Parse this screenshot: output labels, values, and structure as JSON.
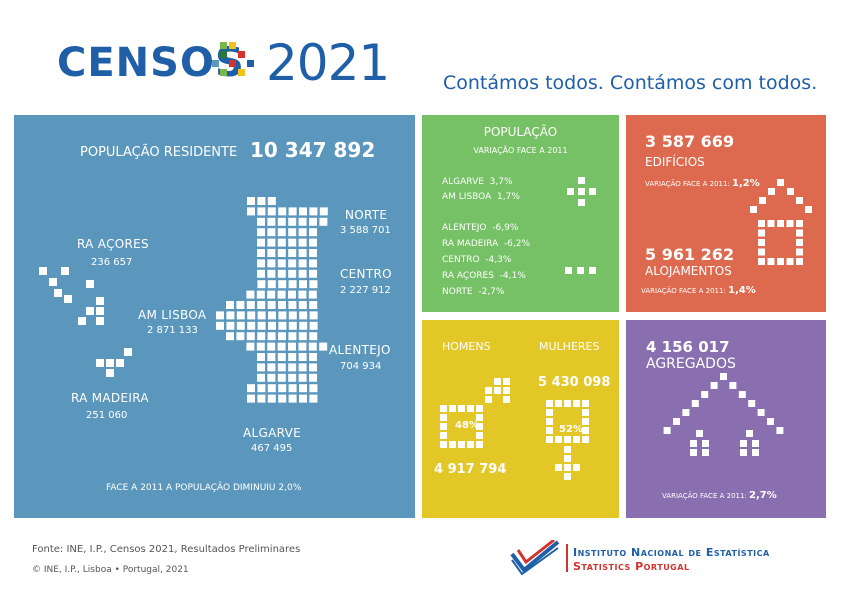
{
  "header": {
    "logo_word": "CENSOS",
    "logo_year": "2021",
    "tagline": "Contámos todos. Contámos com todos."
  },
  "colors": {
    "blue_panel": "#5b97bd",
    "green_panel": "#76c165",
    "red_panel": "#dd6a4f",
    "yellow_panel": "#e3c727",
    "purple_panel": "#8a6fb0",
    "brand_blue": "#1f5fa8",
    "ine_red": "#d1342f"
  },
  "map_panel": {
    "population_label": "POPULAÇÃO RESIDENTE",
    "population_value": "10 347 892",
    "regions": [
      {
        "name": "NORTE",
        "value": "3 588 701"
      },
      {
        "name": "CENTRO",
        "value": "2 227 912"
      },
      {
        "name": "AM LISBOA",
        "value": "2 871 133"
      },
      {
        "name": "ALENTEJO",
        "value": "704 934"
      },
      {
        "name": "ALGARVE",
        "value": "467 495"
      },
      {
        "name": "RA AÇORES",
        "value": "236 657"
      },
      {
        "name": "RA MADEIRA",
        "value": "251 060"
      }
    ],
    "footnote": "FACE A 2011 A POPULAÇÃO DIMINUIU 2,0%"
  },
  "variation_panel": {
    "title": "POPULAÇÃO",
    "subtitle": "VARIAÇÃO FACE A 2011",
    "positive": [
      {
        "name": "ALGARVE",
        "value": "3,7%"
      },
      {
        "name": "AM LISBOA",
        "value": "1,7%"
      }
    ],
    "negative": [
      {
        "name": "ALENTEJO",
        "value": "-6,9%"
      },
      {
        "name": "RA MADEIRA",
        "value": "-6,2%"
      },
      {
        "name": "CENTRO",
        "value": "-4,3%"
      },
      {
        "name": "RA AÇORES",
        "value": "-4,1%"
      },
      {
        "name": "NORTE",
        "value": "-2,7%"
      }
    ]
  },
  "buildings_panel": {
    "buildings_value": "3 587 669",
    "buildings_label": "EDIFÍCIOS",
    "buildings_var_label": "VARIAÇÃO FACE A 2011:",
    "buildings_var_value": "1,2%",
    "dwellings_value": "5 961 262",
    "dwellings_label": "ALOJAMENTOS",
    "dwellings_var_label": "VARIAÇÃO FACE A 2011:",
    "dwellings_var_value": "1,4%"
  },
  "gender_panel": {
    "men_label": "HOMENS",
    "women_label": "MULHERES",
    "men_pct": "48%",
    "women_pct": "52%",
    "men_value": "4 917 794",
    "women_value": "5 430 098"
  },
  "households_panel": {
    "value": "4 156 017",
    "label": "AGREGADOS",
    "var_label": "VARIAÇÃO FACE A 2011:",
    "var_value": "2,7%"
  },
  "footer": {
    "source": "Fonte: INE, I.P., Censos 2021, Resultados Preliminares",
    "copyright": "© INE, I.P., Lisboa • Portugal, 2021",
    "ine_line1": "Instituto Nacional de Estatística",
    "ine_line2": "Statistics Portugal"
  }
}
